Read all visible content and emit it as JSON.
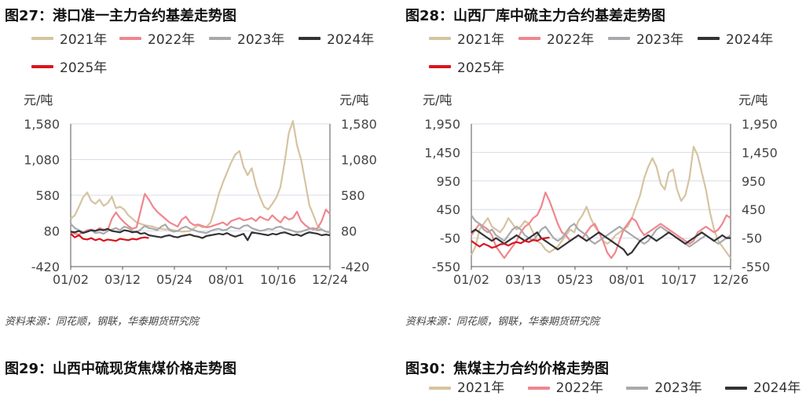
{
  "chart_data": [
    {
      "id": "fig27",
      "type": "line",
      "title": "图27：港口准一主力合约基差走势图",
      "ylabel_left": "元/吨",
      "ylabel_right": "元/吨",
      "ylim": [
        -420,
        1580
      ],
      "yticks": [
        -420,
        80,
        580,
        1080,
        1580
      ],
      "ytick_labels": [
        "-420",
        "80",
        "580",
        "1,080",
        "1,580"
      ],
      "xtick_labels": [
        "01/02",
        "03/12",
        "05/24",
        "08/01",
        "10/16",
        "12/24"
      ],
      "source": "资料来源：同花顺，钢联，华泰期货研究院",
      "series": [
        {
          "name": "2021年",
          "color": "#D6C3A0",
          "values": [
            250,
            300,
            420,
            550,
            620,
            500,
            460,
            520,
            430,
            470,
            560,
            400,
            420,
            380,
            300,
            250,
            200,
            180,
            160,
            150,
            140,
            120,
            110,
            100,
            105,
            90,
            80,
            70,
            75,
            80,
            120,
            160,
            130,
            140,
            200,
            380,
            600,
            760,
            900,
            1040,
            1150,
            1200,
            980,
            860,
            960,
            720,
            550,
            420,
            380,
            460,
            550,
            700,
            1050,
            1450,
            1620,
            1280,
            1080,
            760,
            440,
            300,
            150,
            100,
            70,
            60
          ]
        },
        {
          "name": "2022年",
          "color": "#F0868E",
          "values": [
            60,
            40,
            30,
            60,
            90,
            100,
            80,
            120,
            100,
            90,
            250,
            340,
            260,
            200,
            150,
            110,
            130,
            360,
            600,
            520,
            420,
            350,
            300,
            250,
            200,
            170,
            140,
            240,
            280,
            200,
            160,
            170,
            150,
            130,
            140,
            160,
            180,
            200,
            160,
            220,
            240,
            260,
            230,
            240,
            260,
            220,
            280,
            250,
            230,
            300,
            240,
            200,
            280,
            240,
            260,
            350,
            220,
            160,
            120,
            100,
            120,
            220,
            380,
            320
          ]
        },
        {
          "name": "2023年",
          "color": "#A9A9AD",
          "values": [
            180,
            120,
            90,
            60,
            70,
            90,
            50,
            60,
            40,
            80,
            100,
            120,
            90,
            140,
            120,
            80,
            60,
            100,
            150,
            120,
            110,
            90,
            140,
            170,
            90,
            70,
            80,
            120,
            140,
            110,
            90,
            70,
            60,
            50,
            80,
            100,
            110,
            90,
            100,
            140,
            120,
            110,
            150,
            160,
            120,
            100,
            80,
            90,
            110,
            100,
            130,
            140,
            110,
            100,
            80,
            60,
            70,
            90,
            110,
            120,
            90,
            100,
            70,
            60
          ]
        },
        {
          "name": "2024年",
          "color": "#333333",
          "values": [
            70,
            60,
            80,
            50,
            70,
            90,
            80,
            100,
            90,
            110,
            80,
            70,
            60,
            90,
            80,
            60,
            70,
            40,
            50,
            20,
            10,
            0,
            -10,
            10,
            20,
            0,
            -10,
            10,
            20,
            30,
            10,
            0,
            -20,
            10,
            20,
            30,
            40,
            30,
            50,
            20,
            0,
            20,
            40,
            -50,
            60,
            50,
            40,
            30,
            20,
            40,
            30,
            50,
            60,
            40,
            20,
            30,
            10,
            40,
            60,
            50,
            40,
            20,
            30,
            20
          ]
        },
        {
          "name": "2025年",
          "color": "#D9151F",
          "values": [
            40,
            -10,
            20,
            -30,
            -40,
            -20,
            -50,
            -30,
            -60,
            -40,
            -50,
            -60,
            -30,
            -40,
            -50,
            -30,
            -40,
            -20,
            -10,
            -20
          ]
        }
      ]
    },
    {
      "id": "fig28",
      "type": "line",
      "title": "图28：山西厂库中硫主力合约基差走势图",
      "ylabel_left": "元/吨",
      "ylabel_right": "元/吨",
      "ylim": [
        -550,
        1950
      ],
      "yticks": [
        -550,
        -50,
        450,
        950,
        1450,
        1950
      ],
      "ytick_labels": [
        "-550",
        "-50",
        "450",
        "950",
        "1,450",
        "1,950"
      ],
      "xtick_labels": [
        "01/02",
        "03/13",
        "05/23",
        "08/01",
        "10/17",
        "12/26"
      ],
      "source": "资料来源：同花顺，钢联，华泰期货研究院",
      "series": [
        {
          "name": "2021年",
          "color": "#D6C3A0",
          "values": [
            -350,
            -200,
            100,
            200,
            300,
            150,
            100,
            50,
            150,
            300,
            200,
            100,
            150,
            250,
            200,
            50,
            -100,
            -150,
            -250,
            -300,
            -250,
            -200,
            -100,
            0,
            100,
            50,
            250,
            350,
            500,
            300,
            150,
            50,
            -100,
            -150,
            -100,
            0,
            50,
            100,
            150,
            300,
            500,
            700,
            1000,
            1200,
            1350,
            1200,
            900,
            800,
            1100,
            1150,
            800,
            600,
            700,
            1000,
            1550,
            1400,
            1100,
            800,
            400,
            100,
            -100,
            -200,
            -300,
            -400
          ]
        },
        {
          "name": "2022年",
          "color": "#F0868E",
          "values": [
            0,
            100,
            200,
            150,
            100,
            0,
            -200,
            -300,
            -400,
            -300,
            -200,
            -100,
            50,
            150,
            200,
            300,
            350,
            500,
            750,
            600,
            400,
            200,
            50,
            0,
            -100,
            -50,
            0,
            -50,
            50,
            150,
            200,
            50,
            -100,
            -300,
            -400,
            -300,
            -100,
            100,
            200,
            300,
            250,
            100,
            0,
            50,
            100,
            150,
            200,
            150,
            100,
            50,
            0,
            -50,
            -100,
            -150,
            -100,
            50,
            100,
            150,
            100,
            50,
            100,
            200,
            350,
            300
          ]
        },
        {
          "name": "2023年",
          "color": "#A9A9AD",
          "values": [
            350,
            250,
            200,
            100,
            50,
            100,
            0,
            -50,
            -100,
            0,
            100,
            150,
            100,
            0,
            -50,
            -100,
            0,
            100,
            150,
            50,
            -50,
            -100,
            -50,
            50,
            150,
            200,
            100,
            50,
            0,
            -100,
            -150,
            -100,
            -50,
            0,
            50,
            100,
            150,
            100,
            50,
            0,
            -50,
            -100,
            -150,
            -100,
            0,
            100,
            150,
            100,
            50,
            0,
            -50,
            -100,
            -150,
            -200,
            -150,
            -100,
            -50,
            0,
            -50,
            -100,
            -150,
            -100,
            -50,
            0
          ]
        },
        {
          "name": "2024年",
          "color": "#333333",
          "values": [
            50,
            100,
            50,
            0,
            -50,
            -100,
            -50,
            -100,
            -150,
            -100,
            -50,
            0,
            -50,
            -100,
            -50,
            0,
            50,
            -50,
            -100,
            -150,
            -200,
            -250,
            -200,
            -150,
            -100,
            -50,
            0,
            -50,
            -100,
            -50,
            0,
            50,
            0,
            -50,
            -100,
            -150,
            -200,
            -250,
            -350,
            -300,
            -200,
            -100,
            -50,
            0,
            -50,
            -100,
            -50,
            0,
            50,
            0,
            -50,
            -100,
            -150,
            -100,
            -50,
            0,
            50,
            0,
            -50,
            -100,
            -50,
            0,
            -50,
            -50
          ]
        },
        {
          "name": "2025年",
          "color": "#D9151F",
          "values": [
            -100,
            -150,
            -200,
            -150,
            -180,
            -220,
            -200,
            -160,
            -150,
            -180,
            -140,
            -120,
            -140,
            -100,
            -120,
            -80,
            -100,
            -60,
            -50,
            -40
          ]
        }
      ]
    }
  ],
  "legend_labels": [
    "2021年",
    "2022年",
    "2023年",
    "2024年",
    "2025年"
  ],
  "bottom": {
    "title_left": "图29：山西中硫现货焦煤价格走势图",
    "title_right": "图30：焦煤主力合约价格走势图",
    "cut_legend_right": [
      "2021年",
      "2022年",
      "2023年",
      "2024年"
    ]
  }
}
